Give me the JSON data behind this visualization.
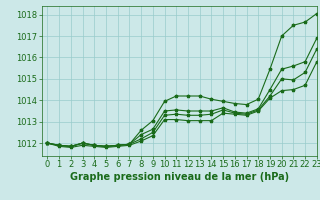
{
  "xlabel": "Graphe pression niveau de la mer (hPa)",
  "xlim": [
    -0.5,
    23
  ],
  "ylim": [
    1011.4,
    1018.4
  ],
  "yticks": [
    1012,
    1013,
    1014,
    1015,
    1016,
    1017,
    1018
  ],
  "xticks": [
    0,
    1,
    2,
    3,
    4,
    5,
    6,
    7,
    8,
    9,
    10,
    11,
    12,
    13,
    14,
    15,
    16,
    17,
    18,
    19,
    20,
    21,
    22,
    23
  ],
  "background_color": "#cce8e8",
  "grid_color": "#99cccc",
  "line_color": "#1a6b1a",
  "marker": "*",
  "series": [
    [
      1012.0,
      1011.9,
      1011.85,
      1012.0,
      1011.9,
      1011.85,
      1011.9,
      1011.95,
      1012.6,
      1013.05,
      1013.95,
      1014.2,
      1014.2,
      1014.2,
      1014.05,
      1013.95,
      1013.85,
      1013.8,
      1014.05,
      1015.45,
      1017.0,
      1017.5,
      1017.65,
      1018.05
    ],
    [
      1012.0,
      1011.9,
      1011.85,
      1012.0,
      1011.9,
      1011.85,
      1011.9,
      1011.95,
      1012.4,
      1012.65,
      1013.5,
      1013.55,
      1013.5,
      1013.5,
      1013.5,
      1013.65,
      1013.45,
      1013.4,
      1013.6,
      1014.5,
      1015.45,
      1015.6,
      1015.8,
      1016.9
    ],
    [
      1012.0,
      1011.9,
      1011.85,
      1012.0,
      1011.9,
      1011.85,
      1011.9,
      1011.95,
      1012.2,
      1012.5,
      1013.3,
      1013.35,
      1013.3,
      1013.3,
      1013.35,
      1013.55,
      1013.4,
      1013.35,
      1013.55,
      1014.2,
      1015.0,
      1014.95,
      1015.3,
      1016.4
    ],
    [
      1012.0,
      1011.85,
      1011.8,
      1011.9,
      1011.85,
      1011.8,
      1011.85,
      1011.9,
      1012.1,
      1012.35,
      1013.1,
      1013.1,
      1013.05,
      1013.05,
      1013.05,
      1013.4,
      1013.35,
      1013.3,
      1013.5,
      1014.1,
      1014.45,
      1014.5,
      1014.7,
      1015.8
    ]
  ],
  "marker_size": 2.5,
  "line_width": 0.8,
  "font_color": "#1a6b1a",
  "font_size": 6,
  "xlabel_fontsize": 7,
  "fig_width": 3.2,
  "fig_height": 2.0,
  "dpi": 100
}
